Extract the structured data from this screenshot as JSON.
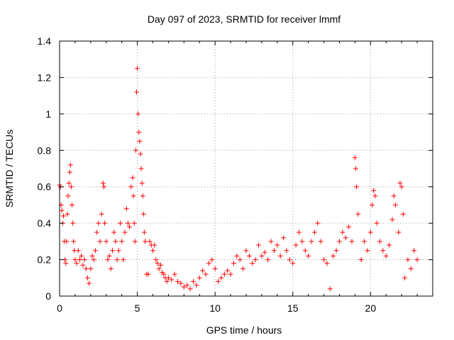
{
  "chart_data": {
    "type": "scatter",
    "title": "Day 097 of 2023, SRMTID for receiver lmmf",
    "xlabel": "GPS time / hours",
    "ylabel": "SRMTID / TECUs",
    "xlim": [
      0,
      24
    ],
    "ylim": [
      0,
      1.4
    ],
    "x_ticks": [
      0,
      5,
      10,
      15,
      20
    ],
    "x_tick_labels": [
      "0",
      "5",
      "10",
      "15",
      "20"
    ],
    "y_ticks": [
      0,
      0.2,
      0.4,
      0.6,
      0.8,
      1.0,
      1.2,
      1.4
    ],
    "y_tick_labels": [
      "0",
      "0.2",
      "0.4",
      "0.6",
      "0.8",
      "1",
      "1.2",
      "1.4"
    ],
    "grid": true,
    "marker": "+",
    "color": "#ff0000",
    "series": [
      {
        "name": "SRMTID",
        "x": [
          0.0,
          0.05,
          0.1,
          0.15,
          0.2,
          0.25,
          0.3,
          0.35,
          0.4,
          0.45,
          0.5,
          0.55,
          0.6,
          0.65,
          0.7,
          0.75,
          0.8,
          0.85,
          0.9,
          0.95,
          1.0,
          1.1,
          1.2,
          1.3,
          1.4,
          1.5,
          1.6,
          1.7,
          1.8,
          1.9,
          2.0,
          2.1,
          2.2,
          2.3,
          2.4,
          2.5,
          2.6,
          2.7,
          2.8,
          2.85,
          2.9,
          3.0,
          3.1,
          3.2,
          3.3,
          3.4,
          3.5,
          3.6,
          3.7,
          3.8,
          3.9,
          4.0,
          4.1,
          4.2,
          4.3,
          4.4,
          4.5,
          4.6,
          4.7,
          4.75,
          4.8,
          4.85,
          4.9,
          4.95,
          5.0,
          5.05,
          5.1,
          5.15,
          5.2,
          5.25,
          5.3,
          5.35,
          5.4,
          5.45,
          5.5,
          5.6,
          5.7,
          5.8,
          5.9,
          6.0,
          6.1,
          6.2,
          6.3,
          6.4,
          6.5,
          6.6,
          6.7,
          6.8,
          6.9,
          7.0,
          7.2,
          7.4,
          7.6,
          7.8,
          8.0,
          8.2,
          8.4,
          8.6,
          8.8,
          9.0,
          9.2,
          9.4,
          9.6,
          9.8,
          10.0,
          10.2,
          10.4,
          10.6,
          10.8,
          11.0,
          11.2,
          11.4,
          11.6,
          11.8,
          12.0,
          12.2,
          12.4,
          12.6,
          12.8,
          13.0,
          13.2,
          13.4,
          13.6,
          13.8,
          14.0,
          14.2,
          14.4,
          14.6,
          14.8,
          15.0,
          15.2,
          15.4,
          15.6,
          15.8,
          16.0,
          16.2,
          16.4,
          16.6,
          16.8,
          17.0,
          17.2,
          17.4,
          17.6,
          17.8,
          18.0,
          18.2,
          18.4,
          18.6,
          18.8,
          19.0,
          19.05,
          19.1,
          19.2,
          19.4,
          19.6,
          19.8,
          20.0,
          20.1,
          20.2,
          20.3,
          20.4,
          20.6,
          20.8,
          21.0,
          21.2,
          21.4,
          21.5,
          21.6,
          21.8,
          21.9,
          22.0,
          22.1,
          22.2,
          22.4,
          22.6,
          22.8,
          23.0
        ],
        "y": [
          0.61,
          0.6,
          0.5,
          0.47,
          0.4,
          0.44,
          0.3,
          0.2,
          0.18,
          0.3,
          0.45,
          0.55,
          0.62,
          0.68,
          0.72,
          0.6,
          0.5,
          0.4,
          0.3,
          0.25,
          0.2,
          0.18,
          0.25,
          0.2,
          0.22,
          0.17,
          0.2,
          0.15,
          0.1,
          0.07,
          0.15,
          0.22,
          0.2,
          0.25,
          0.35,
          0.4,
          0.3,
          0.45,
          0.62,
          0.6,
          0.4,
          0.3,
          0.2,
          0.22,
          0.15,
          0.25,
          0.35,
          0.3,
          0.2,
          0.25,
          0.4,
          0.3,
          0.2,
          0.35,
          0.48,
          0.4,
          0.38,
          0.6,
          0.65,
          0.55,
          0.4,
          0.3,
          0.8,
          1.12,
          1.25,
          1.0,
          0.9,
          0.85,
          0.78,
          0.7,
          0.62,
          0.55,
          0.45,
          0.35,
          0.3,
          0.12,
          0.12,
          0.3,
          0.28,
          0.25,
          0.28,
          0.2,
          0.18,
          0.15,
          0.17,
          0.13,
          0.12,
          0.1,
          0.08,
          0.1,
          0.09,
          0.12,
          0.08,
          0.07,
          0.05,
          0.06,
          0.04,
          0.08,
          0.06,
          0.1,
          0.14,
          0.12,
          0.18,
          0.2,
          0.15,
          0.08,
          0.1,
          0.12,
          0.14,
          0.12,
          0.18,
          0.22,
          0.2,
          0.15,
          0.25,
          0.22,
          0.18,
          0.2,
          0.28,
          0.22,
          0.24,
          0.2,
          0.3,
          0.25,
          0.28,
          0.22,
          0.32,
          0.25,
          0.2,
          0.18,
          0.28,
          0.35,
          0.3,
          0.25,
          0.22,
          0.3,
          0.35,
          0.4,
          0.3,
          0.2,
          0.18,
          0.04,
          0.22,
          0.25,
          0.3,
          0.35,
          0.32,
          0.38,
          0.3,
          0.76,
          0.7,
          0.6,
          0.45,
          0.2,
          0.3,
          0.25,
          0.35,
          0.5,
          0.58,
          0.55,
          0.4,
          0.3,
          0.25,
          0.22,
          0.28,
          0.42,
          0.55,
          0.5,
          0.35,
          0.62,
          0.6,
          0.45,
          0.1,
          0.2,
          0.15,
          0.25,
          0.2
        ]
      }
    ]
  }
}
